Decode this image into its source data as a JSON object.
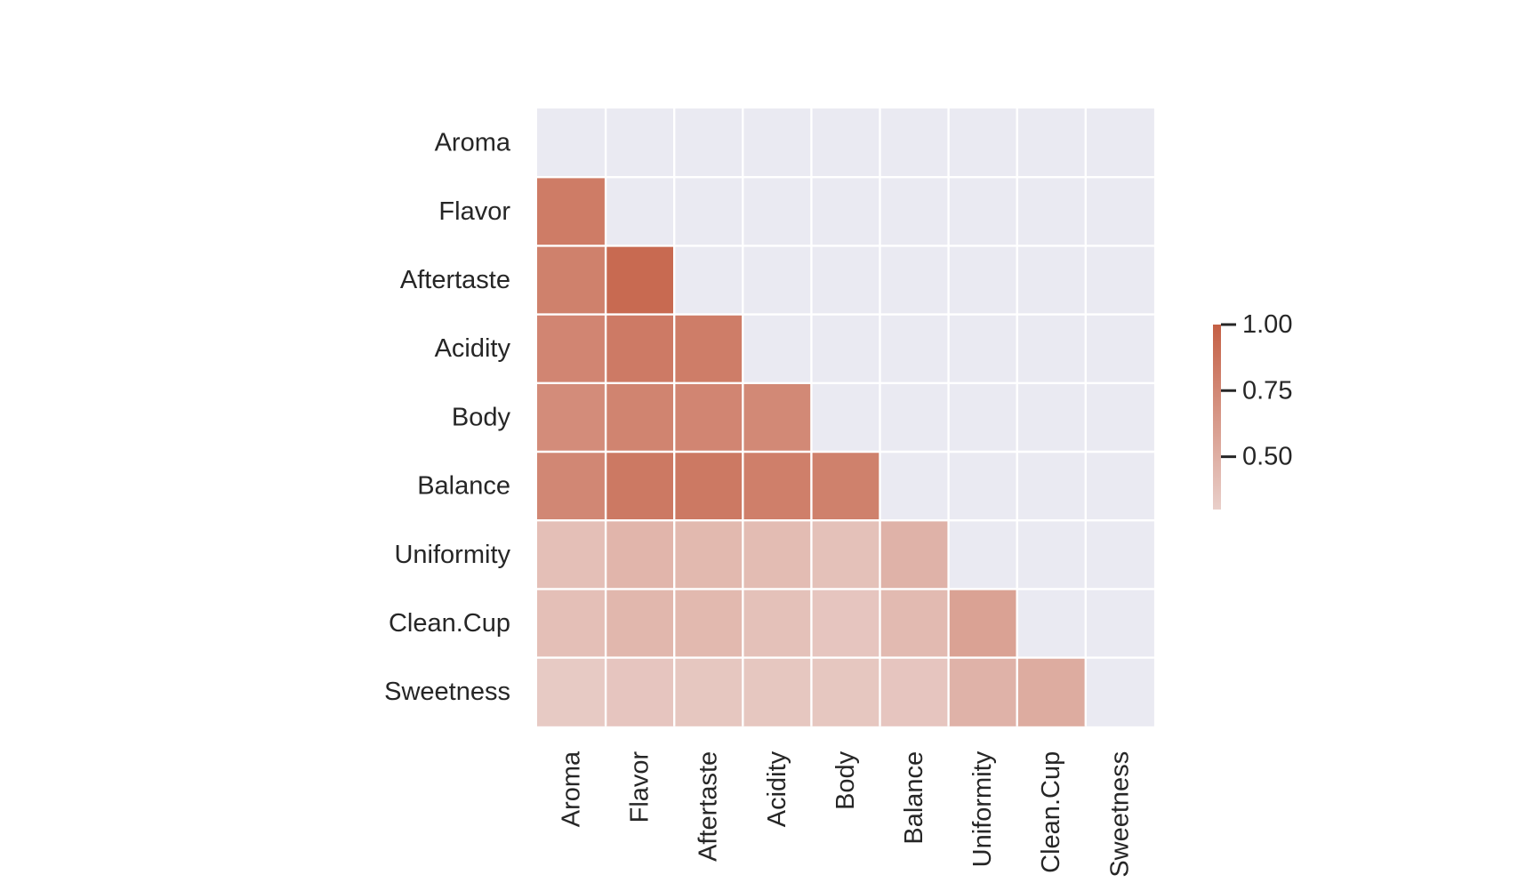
{
  "chart_data": {
    "type": "heatmap",
    "title": "",
    "xlabel": "",
    "ylabel": "",
    "variables": [
      "Aroma",
      "Flavor",
      "Aftertaste",
      "Acidity",
      "Body",
      "Balance",
      "Uniformity",
      "Clean.Cup",
      "Sweetness"
    ],
    "mask": "upper-triangle-including-diagonal",
    "grid_lines": "white",
    "masked_color": "#eaeaf2",
    "colorscale": {
      "low_color": "#e9cfca",
      "high_color": "#c45f44",
      "vmin": 0.3,
      "vmax": 1.0
    },
    "matrix": [
      [
        null,
        null,
        null,
        null,
        null,
        null,
        null,
        null,
        null
      ],
      [
        0.82,
        null,
        null,
        null,
        null,
        null,
        null,
        null,
        null
      ],
      [
        0.79,
        0.93,
        null,
        null,
        null,
        null,
        null,
        null,
        null
      ],
      [
        0.76,
        0.83,
        0.81,
        null,
        null,
        null,
        null,
        null,
        null
      ],
      [
        0.72,
        0.77,
        0.76,
        0.74,
        null,
        null,
        null,
        null,
        null
      ],
      [
        0.75,
        0.84,
        0.84,
        0.8,
        0.79,
        null,
        null,
        null,
        null
      ],
      [
        0.4,
        0.46,
        0.44,
        0.42,
        0.39,
        0.48,
        null,
        null,
        null
      ],
      [
        0.4,
        0.45,
        0.44,
        0.39,
        0.36,
        0.43,
        0.58,
        null,
        null
      ],
      [
        0.33,
        0.36,
        0.35,
        0.35,
        0.35,
        0.36,
        0.48,
        0.52,
        null
      ]
    ],
    "colorbar": {
      "ticks": [
        1.0,
        0.75,
        0.5
      ],
      "tick_labels": [
        "1.00",
        "0.75",
        "0.50"
      ],
      "placement": "right"
    }
  }
}
